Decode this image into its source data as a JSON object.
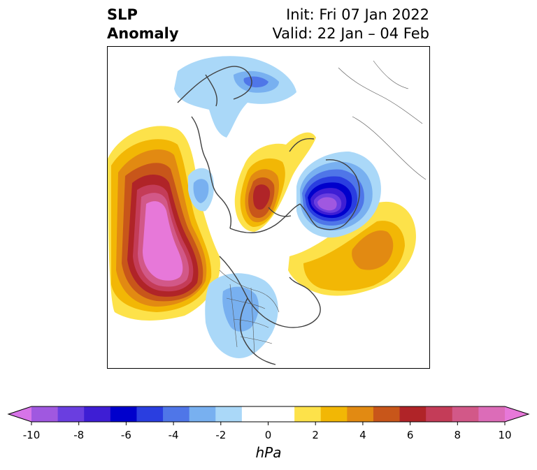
{
  "title": {
    "variable": "SLP",
    "subtitle": "Anomaly",
    "init": "Init: Fri 07 Jan 2022",
    "valid": "Valid: 22 Jan – 04 Feb"
  },
  "colorbar": {
    "unit": "hPa",
    "min": -10,
    "max": 10,
    "step": 1,
    "tick_labels": [
      "-10",
      "-8",
      "-6",
      "-4",
      "-2",
      "0",
      "2",
      "4",
      "6",
      "8",
      "10"
    ],
    "tick_values": [
      -10,
      -8,
      -6,
      -4,
      -2,
      0,
      2,
      4,
      6,
      8,
      10
    ],
    "colors": [
      "#d774e8",
      "#a058e0",
      "#6a3ee0",
      "#3e1ed4",
      "#0000cc",
      "#2a3ee0",
      "#4f76e8",
      "#78b0f0",
      "#aad8f8",
      "#ffffff",
      "#ffffff",
      "#fde24a",
      "#f2b705",
      "#e28a12",
      "#c8561a",
      "#b02428",
      "#c43c58",
      "#d25888",
      "#dc6cb8",
      "#e778d9"
    ],
    "extend": "both"
  },
  "map": {
    "projection": "north-polar-stereographic",
    "colors": {
      "land_border": "#404040",
      "positive_max": "#e878d8",
      "negative_max": "#8030d0"
    }
  }
}
